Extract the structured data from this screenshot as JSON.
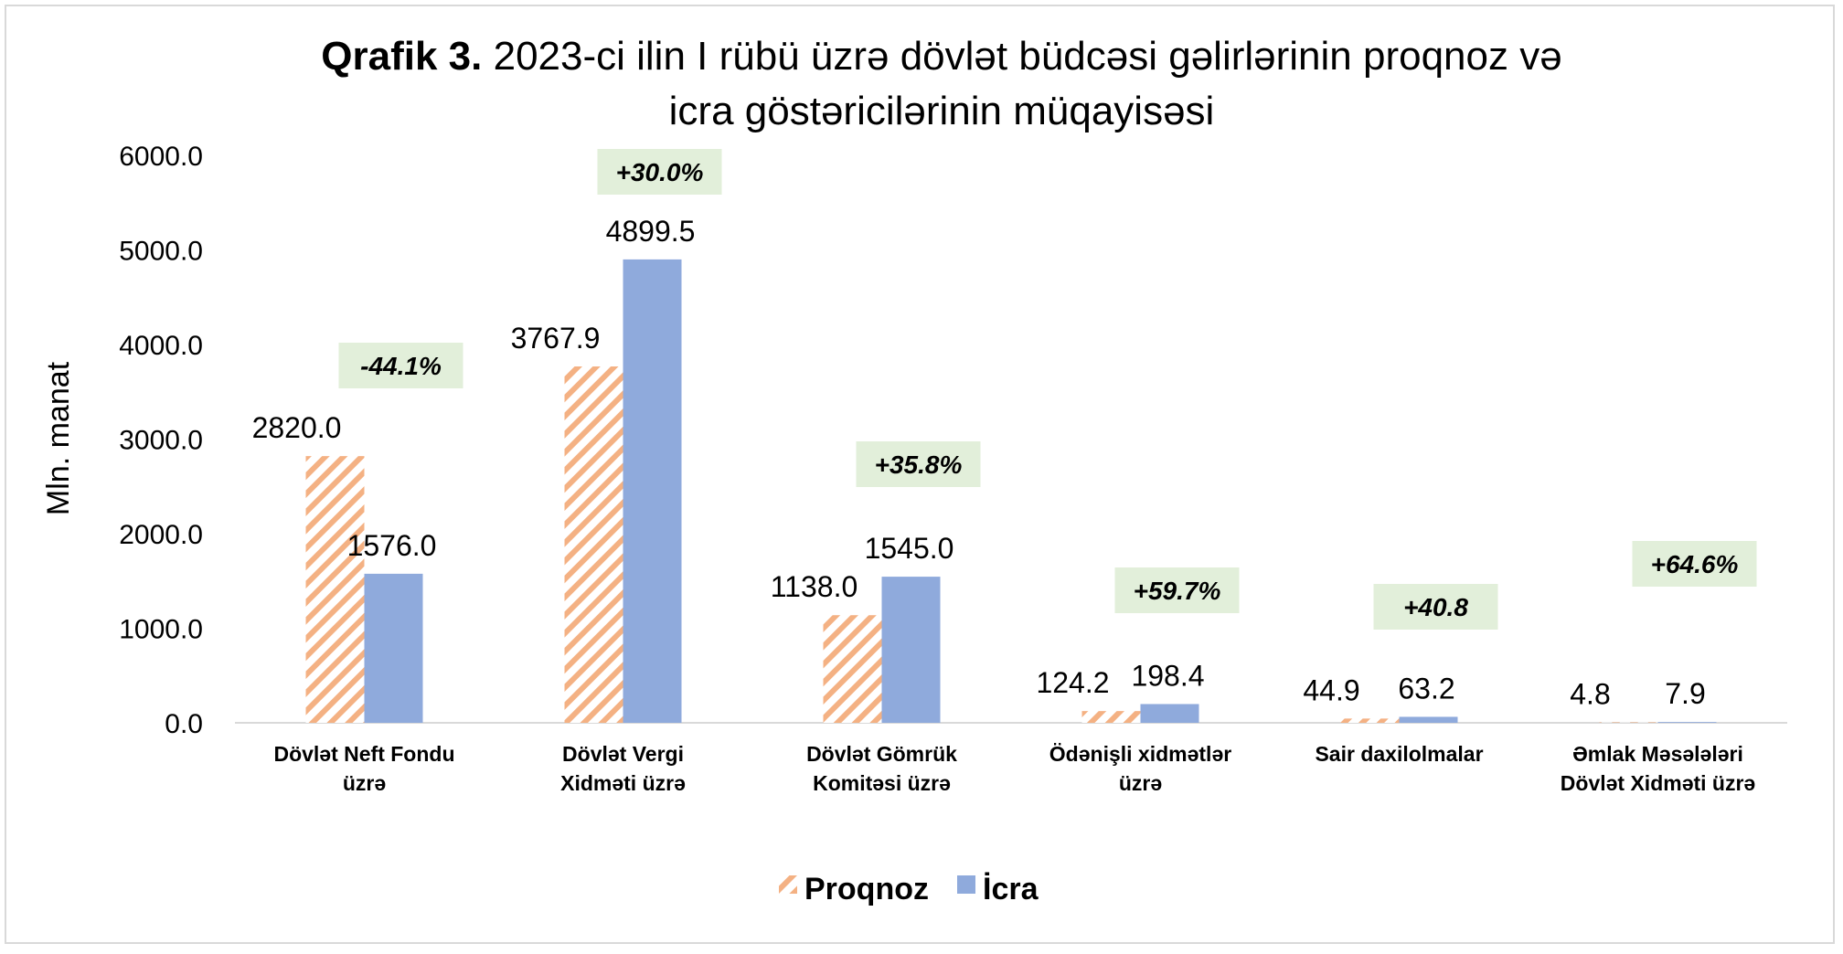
{
  "chart_data": {
    "type": "bar",
    "title_bold": "Qrafik 3.",
    "title_line1": " 2023-ci ilin I rübü  üzrə dövlət büdcəsi gəlirlərinin proqnoz və",
    "title_line2": "icra göstəricilərinin müqayisəsi",
    "ylabel": "Mln. manat",
    "ylim": [
      0,
      6000
    ],
    "yticks": [
      "0.0",
      "1000.0",
      "2000.0",
      "3000.0",
      "4000.0",
      "5000.0",
      "6000.0"
    ],
    "grid": false,
    "legend_placement": "bottom",
    "categories": [
      [
        "Dövlət Neft Fondu",
        "üzrə"
      ],
      [
        "Dövlət Vergi",
        "Xidməti üzrə"
      ],
      [
        "Dövlət Gömrük",
        "Komitəsi üzrə"
      ],
      [
        "Ödənişli xidmətlər",
        "üzrə"
      ],
      [
        "Sair daxilolmalar"
      ],
      [
        "Əmlak Məsələləri",
        "Dövlət Xidməti üzrə"
      ]
    ],
    "series": [
      {
        "name": "Proqnoz",
        "values": [
          2820.0,
          3767.9,
          1138.0,
          124.2,
          44.9,
          4.8
        ],
        "labels": [
          "2820.0",
          "3767.9",
          "1138.0",
          "124.2",
          "44.9",
          "4.8"
        ],
        "color": "#f4b183",
        "pattern": "diagonal-hatch"
      },
      {
        "name": "İcra",
        "values": [
          1576.0,
          4899.5,
          1545.0,
          198.4,
          63.2,
          7.9
        ],
        "labels": [
          "1576.0",
          "4899.5",
          "1545.0",
          "198.4",
          "63.2",
          "7.9"
        ],
        "color": "#8faadc",
        "pattern": "solid"
      }
    ],
    "annotations": [
      "-44.1%",
      "+30.0%",
      "+35.8%",
      "+59.7%",
      "+40.8",
      "+64.6%"
    ],
    "annotation_bg": "#e2efda"
  }
}
